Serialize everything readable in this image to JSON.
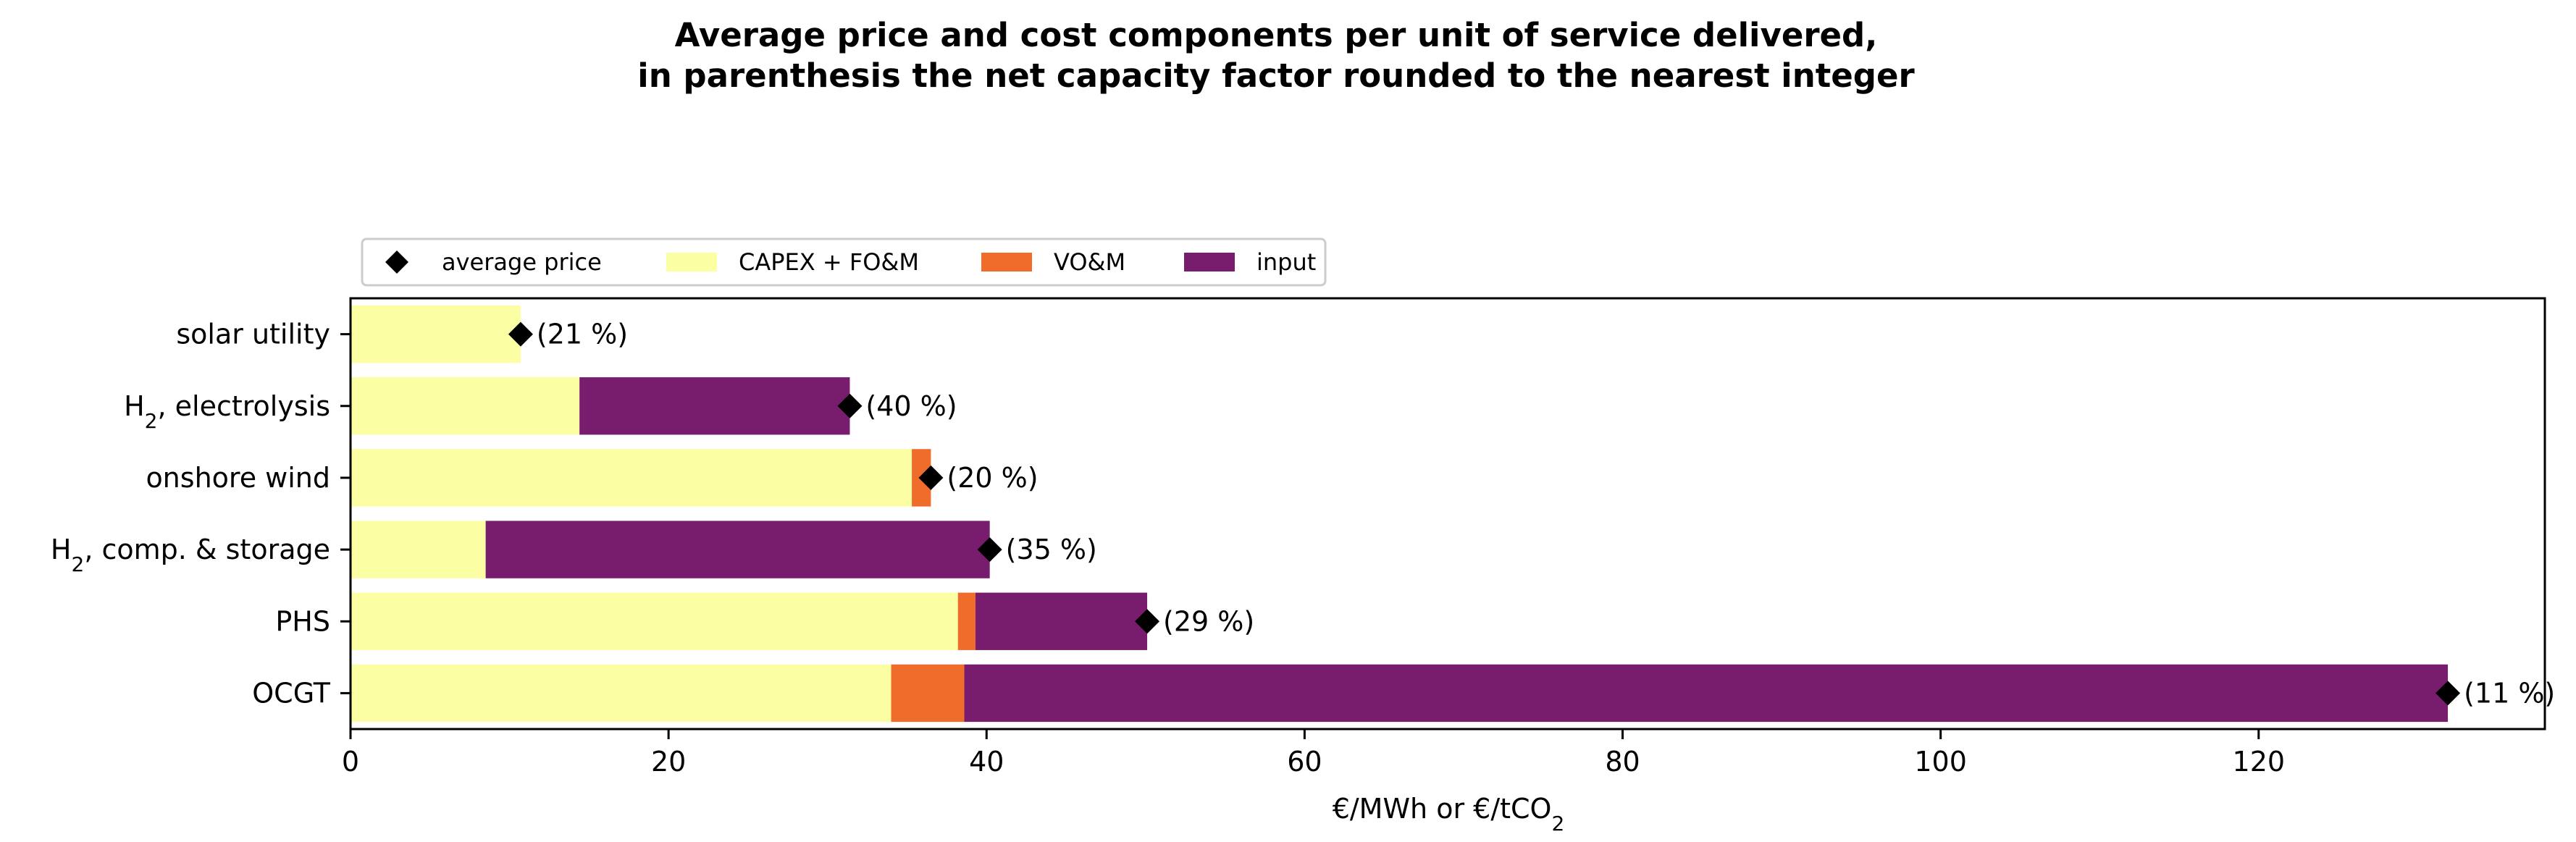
{
  "chart_data": {
    "type": "bar",
    "orientation": "horizontal",
    "stacked": true,
    "title_line1": "Average price and cost components per unit of service delivered,",
    "title_line2": "in parenthesis the net capacity factor rounded to the nearest integer",
    "xlabel": "€/MWh or €/tCO",
    "xlabel_sub": "2",
    "xlim": [
      0,
      138
    ],
    "xticks": [
      "0",
      "20",
      "40",
      "60",
      "80",
      "100",
      "120"
    ],
    "grid": false,
    "legend_position": "top-left, above axes",
    "legend": {
      "marker_label": "average price",
      "series_labels": [
        "CAPEX + FO&M",
        "VO&M",
        "input"
      ]
    },
    "categories": [
      {
        "label": "solar utility",
        "sub": ""
      },
      {
        "label": "H",
        "sub": "2",
        "rest": ", electrolysis"
      },
      {
        "label": "onshore wind",
        "sub": ""
      },
      {
        "label": "H",
        "sub": "2",
        "rest": ", comp. & storage"
      },
      {
        "label": "PHS",
        "sub": ""
      },
      {
        "label": "OCGT",
        "sub": ""
      }
    ],
    "series": [
      {
        "name": "CAPEX + FO&M",
        "color": "#fcfea4",
        "values": [
          10.7,
          14.4,
          35.3,
          8.5,
          38.2,
          34.0
        ]
      },
      {
        "name": "VO&M",
        "color": "#f06c2b",
        "values": [
          0.0,
          0.0,
          1.2,
          0.0,
          1.1,
          4.6
        ]
      },
      {
        "name": "input",
        "color": "#781c6d",
        "values": [
          0.0,
          17.0,
          0.0,
          31.7,
          10.8,
          93.3
        ]
      }
    ],
    "average_price": [
      10.7,
      31.4,
      36.5,
      40.2,
      50.1,
      131.9
    ],
    "capacity_factor_labels": [
      "(21 %)",
      "(40 %)",
      "(20 %)",
      "(35 %)",
      "(29 %)",
      "(11 %)"
    ]
  }
}
